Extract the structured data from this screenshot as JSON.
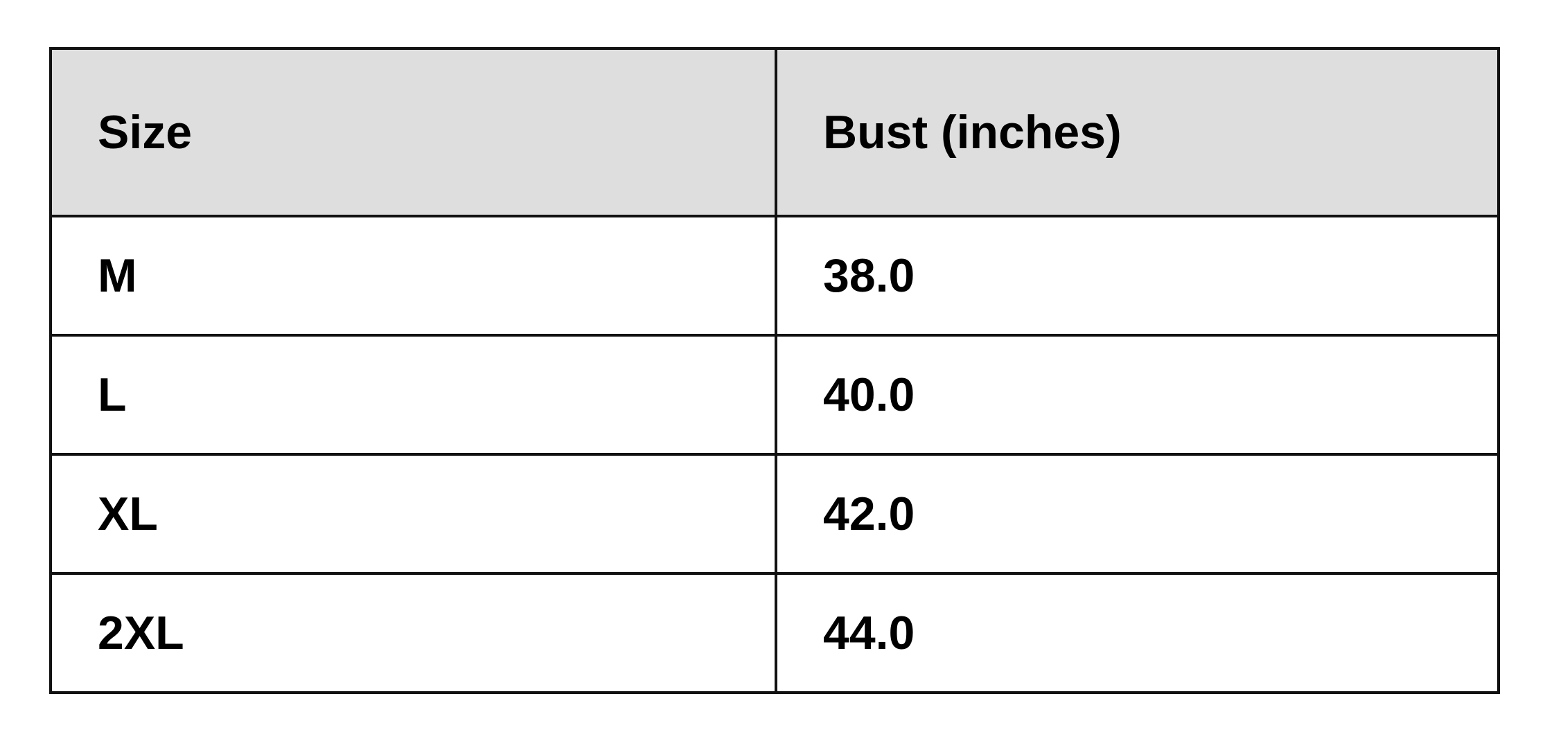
{
  "table": {
    "headers": [
      "Size",
      "Bust (inches)"
    ],
    "rows": [
      [
        "M",
        "38.0"
      ],
      [
        "L",
        "40.0"
      ],
      [
        "XL",
        "42.0"
      ],
      [
        "2XL",
        "44.0"
      ]
    ],
    "header_background": "#dedede"
  }
}
